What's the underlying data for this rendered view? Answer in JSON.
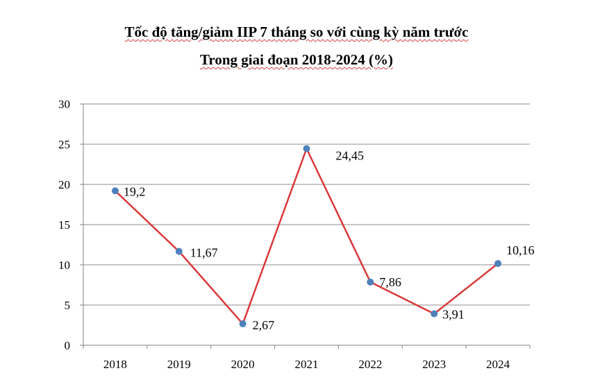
{
  "chart_data": {
    "type": "line",
    "title": "Tốc độ tăng/giảm IIP 7 tháng so với cùng kỳ năm trước",
    "subtitle": "Trong giai đoạn 2018-2024 (%)",
    "categories": [
      "2018",
      "2019",
      "2020",
      "2021",
      "2022",
      "2023",
      "2024"
    ],
    "series": [
      {
        "values": [
          19.2,
          11.67,
          2.67,
          24.45,
          7.86,
          3.91,
          10.16
        ],
        "labels": [
          "19,2",
          "11,67",
          "2,67",
          "24,45",
          "7,86",
          "3,91",
          "10,16"
        ]
      }
    ],
    "yticks": [
      "0",
      "5",
      "10",
      "15",
      "20",
      "25",
      "30"
    ],
    "ylim": [
      0,
      30
    ],
    "grid": true,
    "legend": "none",
    "colors": {
      "line": "#d9383a",
      "marker": "#4f81bd",
      "grid": "#8c8c8c",
      "axis": "#808080"
    }
  }
}
